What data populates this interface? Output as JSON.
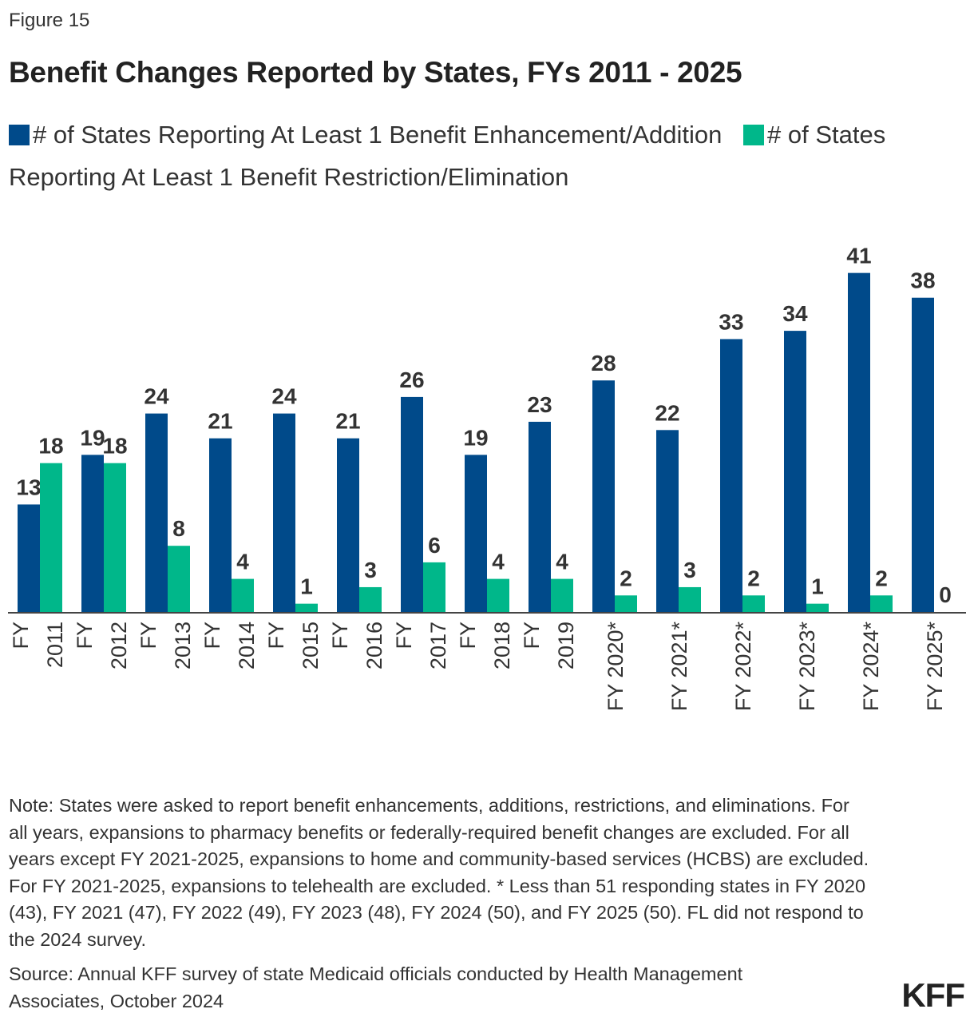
{
  "figure_label": "Figure 15",
  "chart_data": {
    "type": "bar",
    "title": "Benefit Changes Reported by States, FYs 2011 - 2025",
    "categories": [
      "FY 2011",
      "FY 2012",
      "FY 2013",
      "FY 2014",
      "FY 2015",
      "FY 2016",
      "FY 2017",
      "FY 2018",
      "FY 2019",
      "FY 2020*",
      "FY 2021*",
      "FY 2022*",
      "FY 2023*",
      "FY 2024*",
      "FY 2025*"
    ],
    "series": [
      {
        "name": "# of States Reporting At Least 1 Benefit Enhancement/Addition",
        "color": "#004a8a",
        "values": [
          13,
          19,
          24,
          21,
          24,
          21,
          26,
          19,
          23,
          28,
          22,
          33,
          34,
          41,
          38
        ]
      },
      {
        "name": "# of States Reporting At Least 1 Benefit Restriction/Elimination",
        "color": "#00b78a",
        "values": [
          18,
          18,
          8,
          4,
          1,
          3,
          6,
          4,
          4,
          2,
          3,
          2,
          1,
          2,
          0
        ]
      }
    ],
    "ylim": [
      0,
      41
    ],
    "grid": false,
    "data_labels": true,
    "legend_position": "top"
  },
  "note": "Note: States were asked to report benefit enhancements, additions, restrictions, and eliminations. For all years, expansions to pharmacy benefits or federally-required benefit changes are excluded. For all years except FY 2021-2025, expansions to home and community-based services (HCBS) are excluded. For FY 2021-2025, expansions to telehealth are excluded. * Less than 51 responding states in FY 2020 (43), FY 2021 (47), FY 2022 (49), FY 2023 (48), FY 2024 (50), and FY 2025 (50). FL did not respond to the 2024 survey.",
  "source": "Source: Annual KFF survey of state Medicaid officials conducted by Health Management Associates, October 2024",
  "logo": "KFF"
}
